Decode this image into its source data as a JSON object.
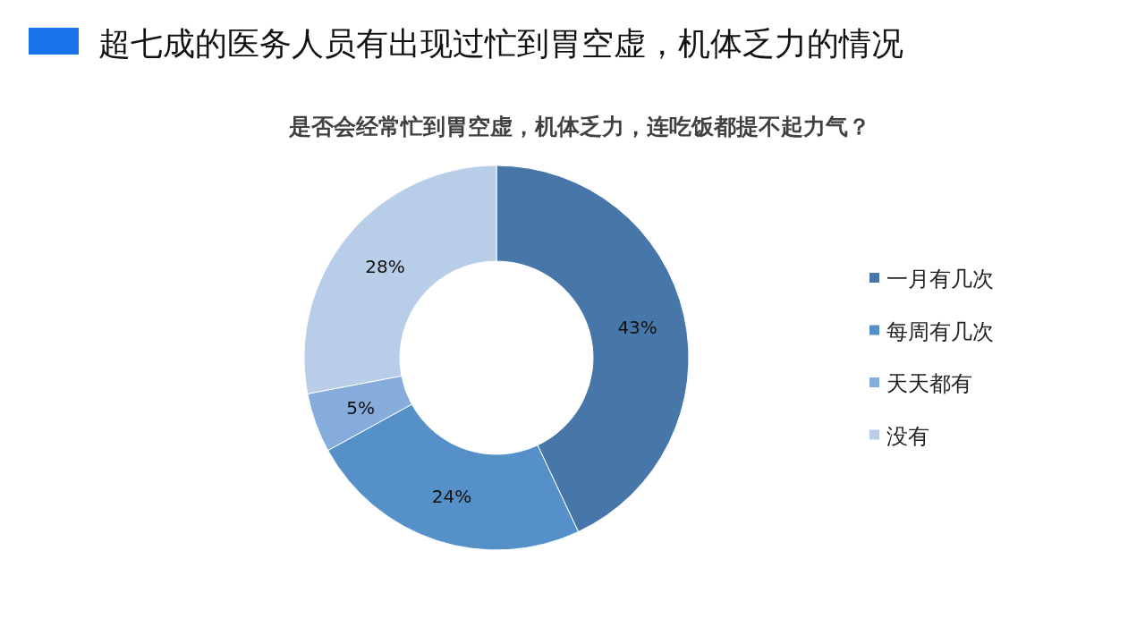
{
  "chart_data": {
    "type": "donut",
    "title": "超七成的医务人员有出现过忙到胃空虚，机体乏力的情况",
    "subtitle": "是否会经常忙到胃空虚，机体乏力，连吃饭都提不起力气？",
    "categories": [
      "一月有几次",
      "每周有几次",
      "天天都有",
      "没有"
    ],
    "values": [
      43,
      24,
      5,
      28
    ],
    "value_labels": [
      "43%",
      "24%",
      "5%",
      "28%"
    ],
    "colors": [
      "#4677a8",
      "#5591c8",
      "#85acdb",
      "#b8cde8"
    ],
    "legend": "right"
  }
}
